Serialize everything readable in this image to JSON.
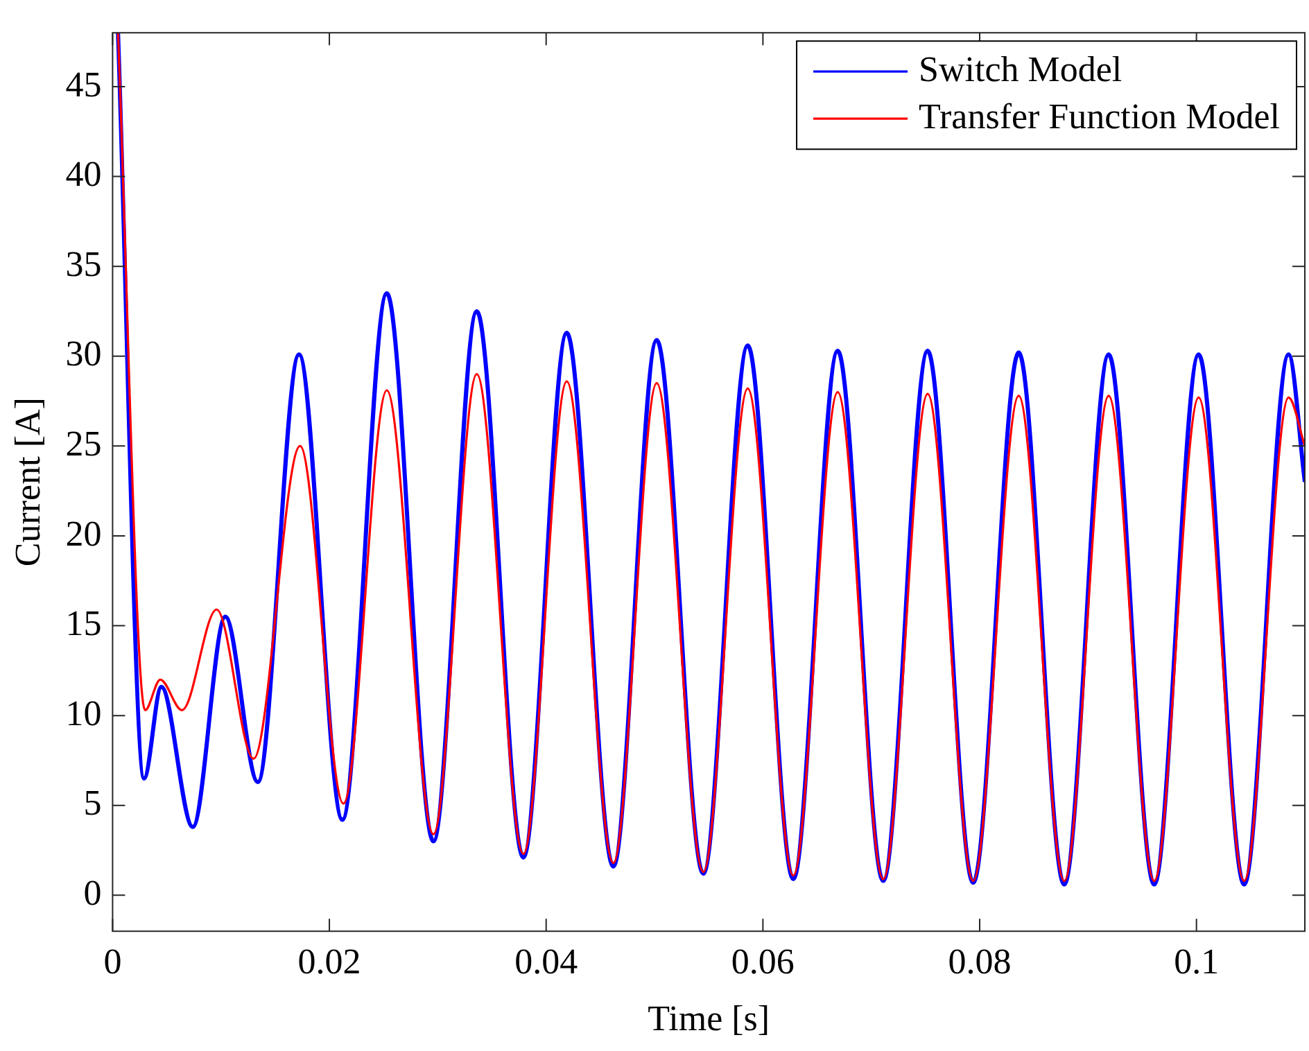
{
  "chart_data": {
    "type": "line",
    "xlabel": "Time [s]",
    "ylabel": "Current [A]",
    "xlim": [
      0,
      0.11
    ],
    "ylim": [
      -2,
      48
    ],
    "xticks": [
      0,
      0.02,
      0.04,
      0.06,
      0.08,
      {
        "value": 0.1,
        "label": "0.1"
      }
    ],
    "yticks": [
      0,
      5,
      10,
      15,
      20,
      25,
      30,
      35,
      40,
      45
    ],
    "grid": false,
    "legend": "top right",
    "marker": "none",
    "line_style": "solid",
    "series": [
      {
        "name": "Switch Model",
        "color": "#0000ff",
        "x": [
          0.0005,
          0.0029,
          0.0045,
          0.0074,
          0.0104,
          0.0134,
          0.0172,
          0.0212,
          0.0253,
          0.0296,
          0.0336,
          0.0379,
          0.0419,
          0.0462,
          0.0502,
          0.0545,
          0.0586,
          0.0628,
          0.0669,
          0.0711,
          0.0752,
          0.0794,
          0.0836,
          0.0878,
          0.0919,
          0.0961,
          0.1002,
          0.1044,
          0.1085,
          0.11
        ],
        "values": [
          48,
          6.5,
          11.6,
          3.8,
          15.5,
          6.3,
          30.1,
          4.2,
          33.5,
          3.0,
          32.5,
          2.1,
          31.3,
          1.6,
          30.9,
          1.2,
          30.6,
          0.9,
          30.3,
          0.8,
          30.3,
          0.7,
          30.2,
          0.6,
          30.1,
          0.6,
          30.1,
          0.6,
          30.1,
          23
        ]
      },
      {
        "name": "Transfer Function Model",
        "color": "#ff0000",
        "x": [
          0.0005,
          0.003,
          0.0044,
          0.0064,
          0.0096,
          0.013,
          0.0173,
          0.0213,
          0.0253,
          0.0296,
          0.0336,
          0.0379,
          0.0419,
          0.0462,
          0.0502,
          0.0545,
          0.0586,
          0.0628,
          0.0669,
          0.0711,
          0.0752,
          0.0794,
          0.0836,
          0.0878,
          0.0919,
          0.0961,
          0.1002,
          0.1044,
          0.1085,
          0.11
        ],
        "values": [
          48,
          10.3,
          12.0,
          10.3,
          15.9,
          7.6,
          25.0,
          5.1,
          28.1,
          3.4,
          29.0,
          2.3,
          28.6,
          1.8,
          28.5,
          1.3,
          28.2,
          1.1,
          28.0,
          0.9,
          27.9,
          0.8,
          27.8,
          0.8,
          27.8,
          0.8,
          27.7,
          0.8,
          27.7,
          25
        ]
      }
    ]
  }
}
